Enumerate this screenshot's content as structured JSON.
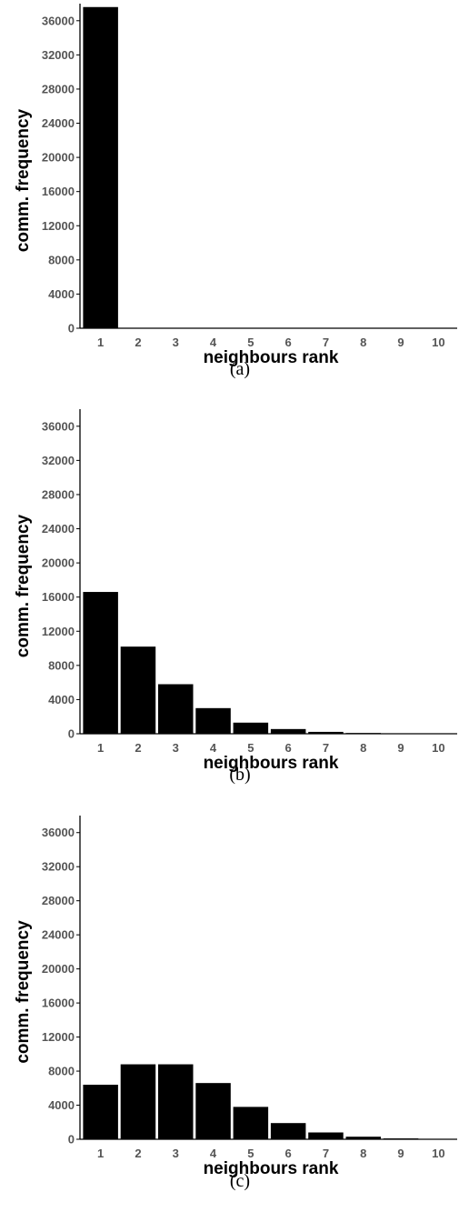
{
  "chart_data": [
    {
      "type": "bar",
      "caption": "(a)",
      "xlabel": "neighbours rank",
      "ylabel": "comm. frequency",
      "categories": [
        "1",
        "2",
        "3",
        "4",
        "5",
        "6",
        "7",
        "8",
        "9",
        "10"
      ],
      "values": [
        37600,
        0,
        0,
        0,
        0,
        0,
        0,
        0,
        0,
        0
      ],
      "ylim": [
        0,
        38000
      ],
      "yticks": [
        "0",
        "4000",
        "8000",
        "12000",
        "16000",
        "20000",
        "24000",
        "28000",
        "32000",
        "36000"
      ],
      "grid": false,
      "bar_color": "#000000"
    },
    {
      "type": "bar",
      "caption": "(b)",
      "xlabel": "neighbours rank",
      "ylabel": "comm. frequency",
      "categories": [
        "1",
        "2",
        "3",
        "4",
        "5",
        "6",
        "7",
        "8",
        "9",
        "10"
      ],
      "values": [
        16600,
        10200,
        5800,
        3000,
        1300,
        550,
        220,
        90,
        40,
        15
      ],
      "ylim": [
        0,
        38000
      ],
      "yticks": [
        "0",
        "4000",
        "8000",
        "12000",
        "16000",
        "20000",
        "24000",
        "28000",
        "32000",
        "36000"
      ],
      "grid": false,
      "bar_color": "#000000"
    },
    {
      "type": "bar",
      "caption": "(c)",
      "xlabel": "neighbours rank",
      "ylabel": "comm. frequency",
      "categories": [
        "1",
        "2",
        "3",
        "4",
        "5",
        "6",
        "7",
        "8",
        "9",
        "10"
      ],
      "values": [
        6400,
        8800,
        8800,
        6600,
        3800,
        1900,
        800,
        300,
        100,
        40
      ],
      "ylim": [
        0,
        38000
      ],
      "yticks": [
        "0",
        "4000",
        "8000",
        "12000",
        "16000",
        "20000",
        "24000",
        "28000",
        "32000",
        "36000"
      ],
      "grid": false,
      "bar_color": "#000000"
    }
  ]
}
